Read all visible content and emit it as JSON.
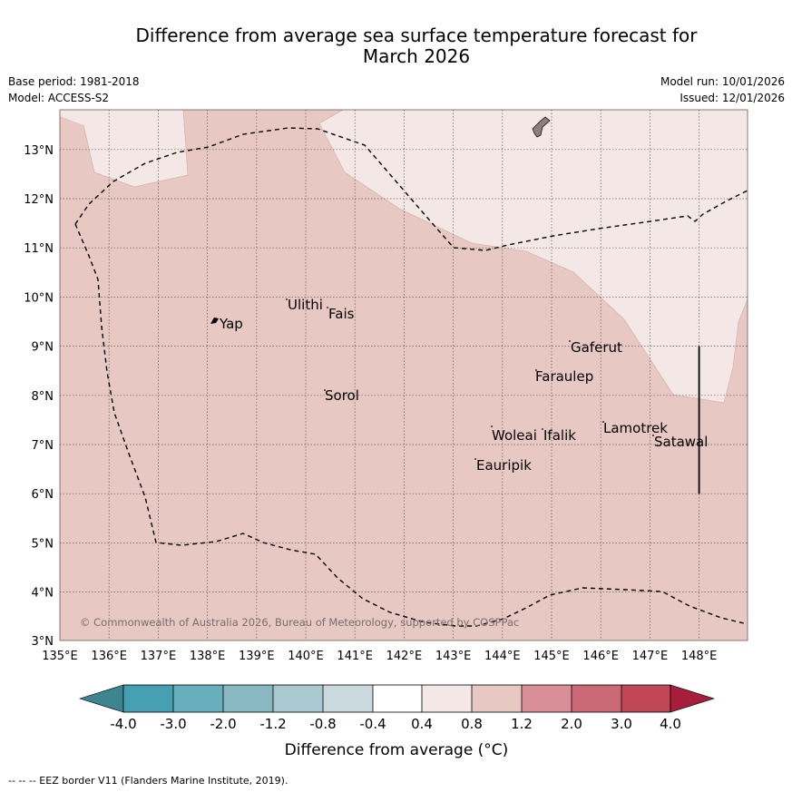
{
  "header": {
    "title_line1": "Difference from average sea surface temperature forecast for",
    "title_line2": "March 2026",
    "base_period": "Base period: 1981-2018",
    "model": "Model: ACCESS-S2",
    "model_run": "Model run: 10/01/2026",
    "issued": "Issued: 12/01/2026"
  },
  "map": {
    "lon_labels": [
      "135°E",
      "136°E",
      "137°E",
      "138°E",
      "139°E",
      "140°E",
      "141°E",
      "142°E",
      "143°E",
      "144°E",
      "145°E",
      "146°E",
      "147°E",
      "148°E"
    ],
    "lat_labels": [
      "3°N",
      "4°N",
      "5°N",
      "6°N",
      "7°N",
      "8°N",
      "9°N",
      "10°N",
      "11°N",
      "12°N",
      "13°N"
    ],
    "places": [
      {
        "name": "Yap"
      },
      {
        "name": "Ulithi"
      },
      {
        "name": "Fais"
      },
      {
        "name": "Gaferut"
      },
      {
        "name": "Faraulep"
      },
      {
        "name": "Sorol"
      },
      {
        "name": "Woleai"
      },
      {
        "name": "Ifalik"
      },
      {
        "name": "Lamotrek"
      },
      {
        "name": "Satawal"
      },
      {
        "name": "Eauripik"
      }
    ],
    "copyright": "© Commonwealth of Australia 2026, Bureau of Meteorology, supported by COSPPac",
    "colors": {
      "band_0_8_to_1_2": "#e7c8c3",
      "band_0_4_to_0_8": "#f4e8e6",
      "land": "#8c7f7c"
    }
  },
  "colorbar": {
    "ticks": [
      "-4.0",
      "-3.0",
      "-2.0",
      "-1.2",
      "-0.8",
      "-0.4",
      "0.4",
      "0.8",
      "1.2",
      "2.0",
      "3.0",
      "4.0"
    ],
    "colors": [
      "#3f8591",
      "#45a0b2",
      "#68afbe",
      "#89b8c3",
      "#a9c8cf",
      "#c9d9dd",
      "#ffffff",
      "#f4e8e6",
      "#e7c8c3",
      "#d78e96",
      "#cb6a76",
      "#bf4756",
      "#a71d3c"
    ],
    "label": "Difference from average (°C)"
  },
  "footer": {
    "legend": "--  --  -- EEZ border V11 (Flanders Marine Institute, 2019)."
  }
}
